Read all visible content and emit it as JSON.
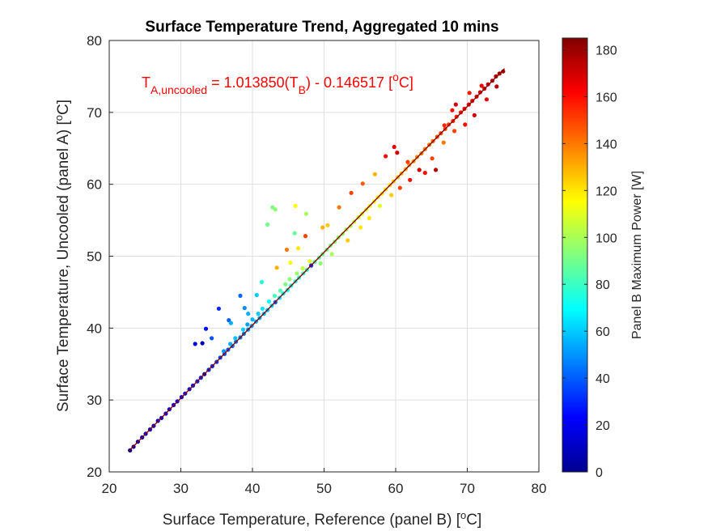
{
  "chart_data": {
    "type": "scatter",
    "title": "Surface Temperature Trend, Aggregated 10 mins",
    "xlabel": {
      "main": "Surface Temperature, Reference (panel B) [",
      "sup": "o",
      "end": "C]"
    },
    "ylabel": {
      "main": "Surface Temperature, Uncooled (panel A) [",
      "sup": "o",
      "end": "C]"
    },
    "xlim": [
      20,
      80
    ],
    "ylim": [
      20,
      80
    ],
    "x_ticks": [
      "20",
      "30",
      "40",
      "50",
      "60",
      "70",
      "80"
    ],
    "y_ticks": [
      "20",
      "30",
      "40",
      "50",
      "60",
      "70",
      "80"
    ],
    "grid": true,
    "colorbar": {
      "label": "Panel B Maximum Power [W]",
      "range": [
        0,
        185
      ],
      "ticks": [
        "0",
        "20",
        "40",
        "60",
        "80",
        "100",
        "120",
        "140",
        "160",
        "180"
      ],
      "colormap": "jet"
    },
    "fit_line": {
      "slope": 1.01385,
      "intercept": -0.146517,
      "x_range": [
        22.8,
        75.2
      ],
      "color": "#8b0000"
    },
    "annotation": {
      "t": "T",
      "sub_a": "A,uncooled",
      "mid": " = 1.013850(T",
      "sub_b": "B",
      "tail": ") - 0.146517   [",
      "sup": "o",
      "end": "C]",
      "color": "#ff0000"
    },
    "points": [
      [
        22.9,
        23.0,
        5
      ],
      [
        23.4,
        23.5,
        8
      ],
      [
        24.0,
        24.2,
        10
      ],
      [
        24.6,
        24.8,
        12
      ],
      [
        25.1,
        25.3,
        14
      ],
      [
        25.7,
        25.9,
        15
      ],
      [
        26.2,
        26.4,
        16
      ],
      [
        26.8,
        27.1,
        18
      ],
      [
        27.3,
        27.5,
        19
      ],
      [
        27.9,
        28.1,
        20
      ],
      [
        28.4,
        28.7,
        21
      ],
      [
        29.0,
        29.3,
        22
      ],
      [
        29.5,
        29.8,
        23
      ],
      [
        30.1,
        30.4,
        24
      ],
      [
        30.6,
        30.9,
        25
      ],
      [
        31.2,
        31.5,
        26
      ],
      [
        31.7,
        32.0,
        27
      ],
      [
        32.3,
        32.6,
        28
      ],
      [
        32.8,
        33.1,
        29
      ],
      [
        33.3,
        33.6,
        10
      ],
      [
        33.9,
        34.2,
        30
      ],
      [
        34.4,
        34.7,
        32
      ],
      [
        35.0,
        35.3,
        34
      ],
      [
        35.5,
        35.9,
        36
      ],
      [
        36.1,
        36.4,
        38
      ],
      [
        36.6,
        37.0,
        40
      ],
      [
        37.2,
        37.5,
        42
      ],
      [
        37.7,
        38.1,
        44
      ],
      [
        38.3,
        38.7,
        46
      ],
      [
        38.8,
        39.2,
        48
      ],
      [
        39.4,
        39.8,
        50
      ],
      [
        39.9,
        40.3,
        52
      ],
      [
        40.5,
        40.9,
        54
      ],
      [
        41.0,
        41.4,
        56
      ],
      [
        41.6,
        42.0,
        58
      ],
      [
        42.1,
        42.5,
        60
      ],
      [
        42.7,
        43.1,
        62
      ],
      [
        43.2,
        43.6,
        40
      ],
      [
        43.8,
        44.2,
        65
      ],
      [
        44.3,
        44.8,
        68
      ],
      [
        44.9,
        45.3,
        70
      ],
      [
        45.4,
        45.9,
        72
      ],
      [
        46.0,
        46.5,
        74
      ],
      [
        46.5,
        47.0,
        76
      ],
      [
        47.1,
        47.6,
        78
      ],
      [
        47.6,
        48.1,
        80
      ],
      [
        48.2,
        48.7,
        30
      ],
      [
        48.7,
        49.2,
        84
      ],
      [
        49.3,
        49.8,
        86
      ],
      [
        49.8,
        50.3,
        88
      ],
      [
        50.4,
        50.9,
        90
      ],
      [
        50.9,
        51.5,
        92
      ],
      [
        51.5,
        52.0,
        94
      ],
      [
        52.0,
        52.6,
        96
      ],
      [
        52.6,
        53.1,
        98
      ],
      [
        53.1,
        53.7,
        100
      ],
      [
        53.7,
        54.2,
        102
      ],
      [
        54.2,
        54.8,
        104
      ],
      [
        54.8,
        55.4,
        106
      ],
      [
        55.3,
        55.9,
        108
      ],
      [
        55.9,
        56.5,
        110
      ],
      [
        56.4,
        57.0,
        112
      ],
      [
        57.0,
        57.6,
        114
      ],
      [
        57.5,
        58.2,
        116
      ],
      [
        58.1,
        58.7,
        118
      ],
      [
        58.6,
        59.3,
        120
      ],
      [
        59.2,
        59.9,
        122
      ],
      [
        59.7,
        60.4,
        124
      ],
      [
        60.3,
        61.0,
        126
      ],
      [
        60.8,
        61.5,
        128
      ],
      [
        61.4,
        62.1,
        130
      ],
      [
        61.9,
        62.7,
        132
      ],
      [
        62.5,
        63.2,
        134
      ],
      [
        63.0,
        63.8,
        136
      ],
      [
        63.6,
        64.3,
        138
      ],
      [
        64.1,
        64.9,
        140
      ],
      [
        64.7,
        65.5,
        142
      ],
      [
        65.2,
        66.0,
        144
      ],
      [
        65.8,
        66.6,
        146
      ],
      [
        66.3,
        67.1,
        148
      ],
      [
        66.9,
        67.7,
        150
      ],
      [
        67.4,
        68.3,
        152
      ],
      [
        68.0,
        68.8,
        154
      ],
      [
        68.5,
        69.4,
        156
      ],
      [
        69.1,
        70.0,
        158
      ],
      [
        69.6,
        70.5,
        160
      ],
      [
        70.2,
        71.1,
        162
      ],
      [
        70.7,
        71.6,
        164
      ],
      [
        71.3,
        72.2,
        166
      ],
      [
        71.8,
        72.8,
        168
      ],
      [
        72.4,
        73.3,
        170
      ],
      [
        72.9,
        73.9,
        172
      ],
      [
        73.5,
        74.4,
        174
      ],
      [
        74.0,
        75.0,
        176
      ],
      [
        74.5,
        75.4,
        178
      ],
      [
        75.0,
        75.7,
        180
      ],
      [
        32.0,
        37.8,
        20
      ],
      [
        33.0,
        37.9,
        10
      ],
      [
        33.5,
        39.9,
        25
      ],
      [
        34.3,
        38.6,
        38
      ],
      [
        35.3,
        42.7,
        30
      ],
      [
        36.7,
        41.1,
        40
      ],
      [
        37.0,
        40.7,
        55
      ],
      [
        38.3,
        44.5,
        42
      ],
      [
        38.9,
        42.8,
        48
      ],
      [
        39.4,
        42.0,
        55
      ],
      [
        40.6,
        44.6,
        60
      ],
      [
        41.3,
        46.4,
        75
      ],
      [
        42.1,
        54.4,
        90
      ],
      [
        42.8,
        56.8,
        92
      ],
      [
        43.2,
        56.5,
        95
      ],
      [
        45.9,
        53.2,
        88
      ],
      [
        46.0,
        57.0,
        115
      ],
      [
        47.5,
        55.9,
        100
      ],
      [
        43.4,
        48.4,
        130
      ],
      [
        44.8,
        50.9,
        140
      ],
      [
        45.3,
        49.1,
        115
      ],
      [
        47.4,
        52.8,
        150
      ],
      [
        46.4,
        51.1,
        120
      ],
      [
        49.8,
        54.0,
        130
      ],
      [
        50.5,
        54.3,
        125
      ],
      [
        52.1,
        56.8,
        140
      ],
      [
        53.8,
        58.8,
        150
      ],
      [
        55.4,
        60.1,
        145
      ],
      [
        57.1,
        61.4,
        130
      ],
      [
        58.6,
        63.9,
        160
      ],
      [
        59.8,
        65.2,
        165
      ],
      [
        60.2,
        64.4,
        170
      ],
      [
        61.7,
        63.1,
        150
      ],
      [
        64.1,
        61.6,
        160
      ],
      [
        65.6,
        62.0,
        175
      ],
      [
        66.8,
        68.2,
        155
      ],
      [
        67.9,
        70.3,
        160
      ],
      [
        68.4,
        71.1,
        170
      ],
      [
        70.3,
        72.7,
        158
      ],
      [
        72.0,
        73.7,
        165
      ],
      [
        49.5,
        49.0,
        95
      ],
      [
        51.1,
        50.3,
        100
      ],
      [
        53.3,
        52.2,
        125
      ],
      [
        55.1,
        54.0,
        120
      ],
      [
        56.3,
        55.3,
        120
      ],
      [
        57.8,
        57.0,
        110
      ],
      [
        59.4,
        58.5,
        125
      ],
      [
        60.6,
        59.5,
        150
      ],
      [
        62.0,
        60.6,
        160
      ],
      [
        63.3,
        62.0,
        170
      ],
      [
        65.1,
        63.6,
        150
      ],
      [
        66.7,
        65.8,
        140
      ],
      [
        68.2,
        67.4,
        150
      ],
      [
        69.7,
        68.3,
        160
      ],
      [
        71.0,
        69.6,
        170
      ],
      [
        72.7,
        71.8,
        165
      ],
      [
        74.1,
        73.6,
        175
      ],
      [
        36.0,
        36.8,
        50
      ],
      [
        36.9,
        37.8,
        55
      ],
      [
        37.6,
        38.6,
        58
      ],
      [
        38.7,
        39.8,
        60
      ],
      [
        39.3,
        40.5,
        52
      ],
      [
        40.0,
        41.2,
        56
      ],
      [
        40.8,
        42.0,
        60
      ],
      [
        41.4,
        42.7,
        64
      ],
      [
        42.3,
        43.7,
        70
      ],
      [
        43.1,
        44.5,
        82
      ],
      [
        43.9,
        45.2,
        85
      ],
      [
        44.6,
        46.1,
        92
      ],
      [
        45.2,
        46.8,
        95
      ],
      [
        46.2,
        47.6,
        98
      ],
      [
        47.0,
        48.3,
        105
      ],
      [
        48.0,
        49.3,
        110
      ]
    ]
  }
}
